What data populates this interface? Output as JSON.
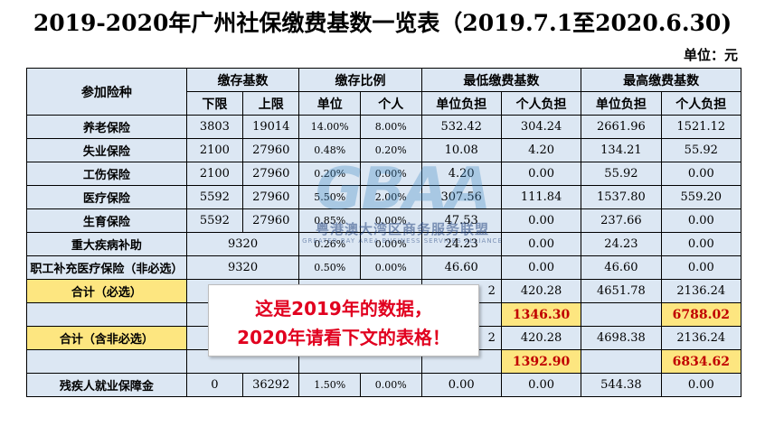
{
  "title": "2019-2020年广州社保缴费基数一览表（2019.7.1至2020.6.30)",
  "unit": "单位：元",
  "header": {
    "item": "参加险种",
    "base": "缴存基数",
    "ratio": "缴存比例",
    "min_pay": "最低缴费基数",
    "max_pay": "最高缴费基数",
    "lower": "下限",
    "upper": "上限",
    "employer": "单位",
    "personal": "个人",
    "min_employer": "单位负担",
    "min_personal": "个人负担",
    "max_employer": "单位负担",
    "max_personal": "个人负担"
  },
  "rows": [
    {
      "name": "养老保险",
      "lower": "3803",
      "upper": "19014",
      "emp_rate": "14.00%",
      "per_rate": "8.00%",
      "min_emp": "532.42",
      "min_per": "304.24",
      "max_emp": "2661.96",
      "max_per": "1521.12"
    },
    {
      "name": "失业保险",
      "lower": "2100",
      "upper": "27960",
      "emp_rate": "0.48%",
      "per_rate": "0.20%",
      "min_emp": "10.08",
      "min_per": "4.20",
      "max_emp": "134.21",
      "max_per": "55.92"
    },
    {
      "name": "工伤保险",
      "lower": "2100",
      "upper": "27960",
      "emp_rate": "0.20%",
      "per_rate": "0.00%",
      "min_emp": "4.20",
      "min_per": "0.00",
      "max_emp": "55.92",
      "max_per": "0.00"
    },
    {
      "name": "医疗保险",
      "lower": "5592",
      "upper": "27960",
      "emp_rate": "5.50%",
      "per_rate": "2.00%",
      "min_emp": "307.56",
      "min_per": "111.84",
      "max_emp": "1537.80",
      "max_per": "559.20"
    },
    {
      "name": "生育保险",
      "lower": "5592",
      "upper": "27960",
      "emp_rate": "0.85%",
      "per_rate": "0.00%",
      "min_emp": "47.53",
      "min_per": "0.00",
      "max_emp": "237.66",
      "max_per": "0.00"
    }
  ],
  "serious": {
    "name": "重大疾病补助",
    "base": "9320",
    "emp_rate": "0.26%",
    "per_rate": "0.00%",
    "min_emp": "24.23",
    "min_per": "0.00",
    "max_emp": "24.23",
    "max_per": "0.00"
  },
  "supplement": {
    "name": "职工补充医疗保险（非必选）",
    "base": "9320",
    "emp_rate": "0.50%",
    "per_rate": "0.00%",
    "min_emp": "46.60",
    "min_per": "0.00",
    "max_emp": "46.60",
    "max_per": "0.00"
  },
  "total_required": {
    "name": "合计（必选）",
    "min_emp_partial": "2",
    "min_per": "420.28",
    "max_emp": "4651.78",
    "max_per": "2136.24",
    "min_sum": "1346.30",
    "max_sum": "6788.02"
  },
  "total_all": {
    "name": "合计（含非必选）",
    "min_emp_partial": "2",
    "min_per": "420.28",
    "max_emp": "4698.38",
    "max_per": "2136.24",
    "min_sum": "1392.90",
    "max_sum": "6834.62"
  },
  "disabled": {
    "name": "残疾人就业保障金",
    "lower": "0",
    "upper": "36292",
    "emp_rate": "1.50%",
    "per_rate": "0.00%",
    "min_emp": "0.00",
    "min_per": "0.00",
    "max_emp": "544.38",
    "max_per": "0.00"
  },
  "watermark": {
    "logo": "GBAA",
    "cn": "粤港澳大湾区商务服务联盟",
    "en": "GREATER BAY AREA BUSINESS SERVICES ALLIANCE"
  },
  "note": {
    "line1": "这是2019年的数据，",
    "line2": "2020年请看下文的表格！"
  },
  "colors": {
    "cell_bg": "#dce7f3",
    "highlight_bg": "#fde680",
    "highlight_text": "#c00000",
    "note_text": "#e1001f"
  }
}
